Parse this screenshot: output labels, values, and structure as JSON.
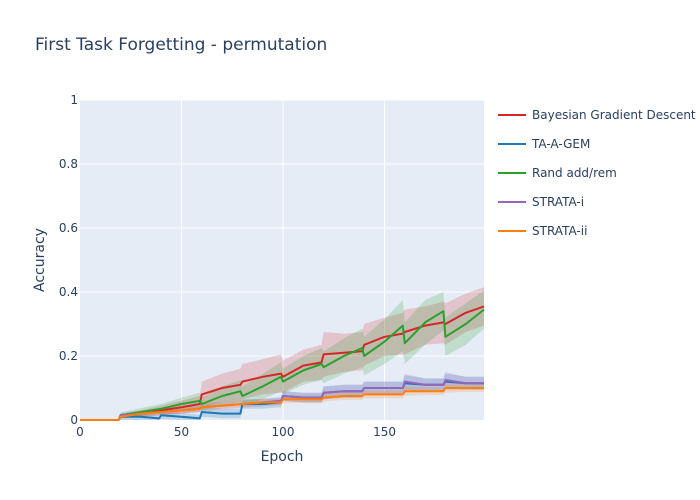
{
  "chart_data": {
    "type": "line",
    "title": "First Task Forgetting - permutation",
    "xlabel": "Epoch",
    "ylabel": "Accuracy",
    "xlim": [
      0,
      199
    ],
    "ylim": [
      0,
      1
    ],
    "x_ticks": [
      0,
      50,
      100,
      150
    ],
    "y_ticks": [
      0,
      0.2,
      0.4,
      0.6,
      0.8,
      1
    ],
    "y_tick_labels": [
      "0",
      "0.2",
      "0.4",
      "0.6",
      "0.8",
      "1"
    ],
    "legend_position": "right",
    "grid": true,
    "plot_background": "#e5ecf6",
    "series": [
      {
        "name": "Bayesian Gradient Descent",
        "color": "#d62728",
        "x": [
          0,
          19,
          20,
          30,
          40,
          50,
          59,
          60,
          70,
          79,
          80,
          90,
          99,
          100,
          110,
          119,
          120,
          130,
          139,
          140,
          150,
          159,
          160,
          170,
          179,
          180,
          190,
          199
        ],
        "y": [
          0,
          0,
          0.01,
          0.02,
          0.03,
          0.04,
          0.05,
          0.08,
          0.1,
          0.11,
          0.12,
          0.135,
          0.145,
          0.135,
          0.17,
          0.18,
          0.205,
          0.21,
          0.215,
          0.235,
          0.26,
          0.27,
          0.275,
          0.295,
          0.305,
          0.3,
          0.335,
          0.355
        ],
        "band": [
          0,
          0,
          0.005,
          0.01,
          0.015,
          0.02,
          0.025,
          0.04,
          0.045,
          0.05,
          0.055,
          0.055,
          0.06,
          0.05,
          0.05,
          0.055,
          0.07,
          0.06,
          0.06,
          0.065,
          0.06,
          0.065,
          0.07,
          0.06,
          0.065,
          0.065,
          0.06,
          0.06
        ]
      },
      {
        "name": "TA-A-GEM",
        "color": "#1f77b4",
        "x": [
          0,
          19,
          20,
          30,
          39,
          40,
          50,
          59,
          60,
          70,
          79,
          80,
          90,
          99,
          100,
          110,
          119,
          120,
          130,
          139,
          140,
          150,
          159,
          160,
          170,
          179,
          180,
          190,
          199
        ],
        "y": [
          0,
          0,
          0.01,
          0.01,
          0.005,
          0.015,
          0.01,
          0.005,
          0.025,
          0.02,
          0.02,
          0.05,
          0.05,
          0.055,
          0.075,
          0.07,
          0.07,
          0.085,
          0.09,
          0.09,
          0.1,
          0.1,
          0.1,
          0.115,
          0.11,
          0.11,
          0.12,
          0.115,
          0.115
        ],
        "band": [
          0,
          0,
          0.01,
          0.01,
          0.01,
          0.012,
          0.012,
          0.012,
          0.015,
          0.015,
          0.015,
          0.015,
          0.015,
          0.015,
          0.015,
          0.015,
          0.015,
          0.02,
          0.02,
          0.02,
          0.02,
          0.02,
          0.02,
          0.025,
          0.02,
          0.02,
          0.025,
          0.02,
          0.02
        ]
      },
      {
        "name": "Rand add/rem",
        "color": "#2ca02c",
        "x": [
          0,
          19,
          20,
          30,
          40,
          50,
          59,
          60,
          70,
          79,
          80,
          90,
          99,
          100,
          110,
          119,
          120,
          130,
          139,
          140,
          150,
          159,
          160,
          170,
          179,
          180,
          190,
          199
        ],
        "y": [
          0,
          0,
          0.015,
          0.025,
          0.035,
          0.05,
          0.06,
          0.05,
          0.075,
          0.09,
          0.075,
          0.105,
          0.135,
          0.12,
          0.155,
          0.175,
          0.165,
          0.2,
          0.225,
          0.2,
          0.245,
          0.295,
          0.24,
          0.305,
          0.34,
          0.26,
          0.3,
          0.345
        ],
        "band": [
          0,
          0,
          0.008,
          0.012,
          0.015,
          0.02,
          0.025,
          0.02,
          0.03,
          0.035,
          0.03,
          0.04,
          0.045,
          0.04,
          0.045,
          0.05,
          0.05,
          0.055,
          0.06,
          0.06,
          0.07,
          0.08,
          0.065,
          0.07,
          0.06,
          0.06,
          0.065,
          0.06
        ]
      },
      {
        "name": "STRATA-i",
        "color": "#9467bd",
        "x": [
          0,
          19,
          20,
          30,
          40,
          50,
          59,
          60,
          70,
          80,
          90,
          99,
          100,
          110,
          119,
          120,
          130,
          139,
          140,
          150,
          159,
          160,
          170,
          179,
          180,
          190,
          199
        ],
        "y": [
          0,
          0,
          0.015,
          0.02,
          0.025,
          0.03,
          0.035,
          0.04,
          0.045,
          0.05,
          0.055,
          0.06,
          0.075,
          0.07,
          0.07,
          0.085,
          0.09,
          0.09,
          0.1,
          0.1,
          0.1,
          0.12,
          0.11,
          0.11,
          0.125,
          0.115,
          0.115
        ],
        "band": [
          0,
          0,
          0.008,
          0.01,
          0.01,
          0.01,
          0.01,
          0.012,
          0.012,
          0.012,
          0.012,
          0.012,
          0.015,
          0.015,
          0.015,
          0.02,
          0.02,
          0.02,
          0.02,
          0.02,
          0.02,
          0.025,
          0.02,
          0.02,
          0.025,
          0.02,
          0.02
        ]
      },
      {
        "name": "STRATA-ii",
        "color": "#ff7f0e",
        "x": [
          0,
          19,
          20,
          30,
          40,
          50,
          59,
          60,
          70,
          80,
          90,
          99,
          100,
          110,
          119,
          120,
          130,
          139,
          140,
          150,
          159,
          160,
          170,
          179,
          180,
          190,
          199
        ],
        "y": [
          0,
          0,
          0.01,
          0.02,
          0.025,
          0.03,
          0.035,
          0.04,
          0.045,
          0.05,
          0.055,
          0.055,
          0.065,
          0.065,
          0.065,
          0.07,
          0.075,
          0.075,
          0.08,
          0.08,
          0.08,
          0.09,
          0.09,
          0.09,
          0.1,
          0.1,
          0.1
        ],
        "band": [
          0,
          0,
          0.006,
          0.008,
          0.008,
          0.008,
          0.008,
          0.01,
          0.01,
          0.01,
          0.01,
          0.01,
          0.012,
          0.012,
          0.012,
          0.012,
          0.012,
          0.012,
          0.012,
          0.012,
          0.012,
          0.015,
          0.012,
          0.012,
          0.015,
          0.012,
          0.012
        ]
      }
    ]
  }
}
